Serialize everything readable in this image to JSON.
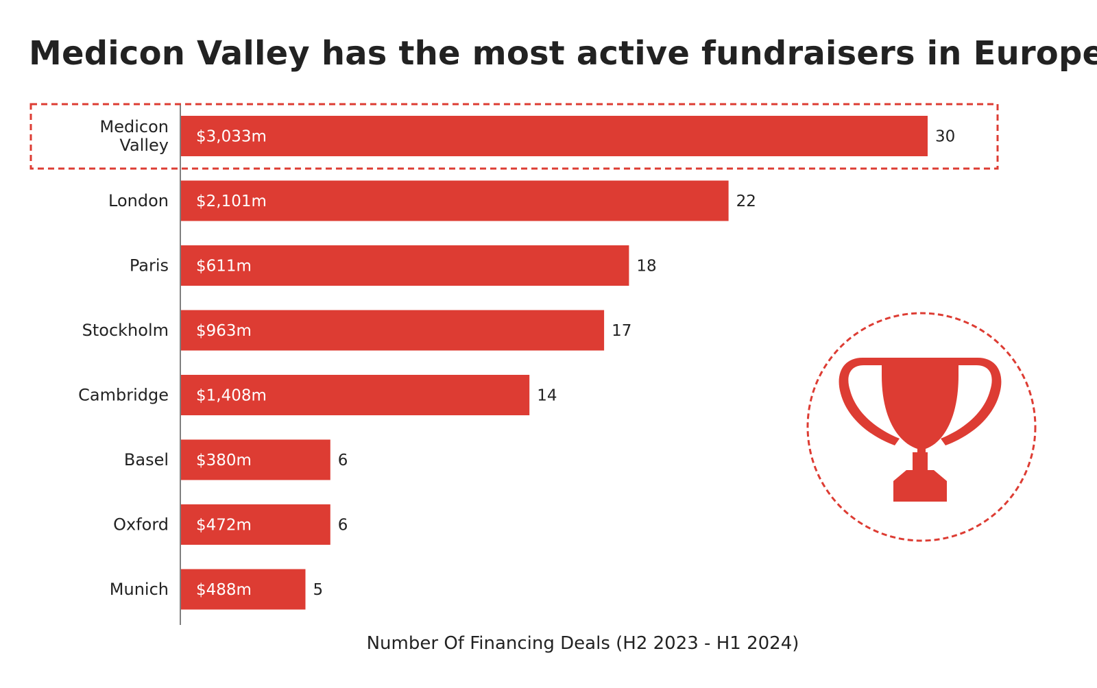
{
  "title": "Medicon Valley has the most active fundraisers in Europe",
  "colors": {
    "bar": "#dd3c33",
    "text": "#222222",
    "axis": "#555555",
    "highlight": "#dd3c33",
    "bar_label": "#ffffff"
  },
  "icons": {
    "trophy": "trophy-icon"
  },
  "chart_data": {
    "type": "bar",
    "orientation": "horizontal",
    "title": "Medicon Valley has the most active fundraisers in Europe",
    "xlabel": "Number Of Financing Deals (H2 2023 - H1 2024)",
    "ylabel": "",
    "categories": [
      "Medicon Valley",
      "London",
      "Paris",
      "Stockholm",
      "Cambridge",
      "Basel",
      "Oxford",
      "Munich"
    ],
    "category_lines": [
      [
        "Medicon",
        "Valley"
      ],
      [
        "London"
      ],
      [
        "Paris"
      ],
      [
        "Stockholm"
      ],
      [
        "Cambridge"
      ],
      [
        "Basel"
      ],
      [
        "Oxford"
      ],
      [
        "Munich"
      ]
    ],
    "values": [
      30,
      22,
      18,
      17,
      14,
      6,
      6,
      5
    ],
    "bar_labels": [
      "$3,033m",
      "$2,101m",
      "$611m",
      "$963m",
      "$1,408m",
      "$380m",
      "$472m",
      "$488m"
    ],
    "value_labels": [
      "30",
      "22",
      "18",
      "17",
      "14",
      "6",
      "6",
      "5"
    ],
    "xlim": [
      0,
      34
    ],
    "grid": false,
    "legend": "none",
    "highlighted_category": "Medicon Valley"
  }
}
